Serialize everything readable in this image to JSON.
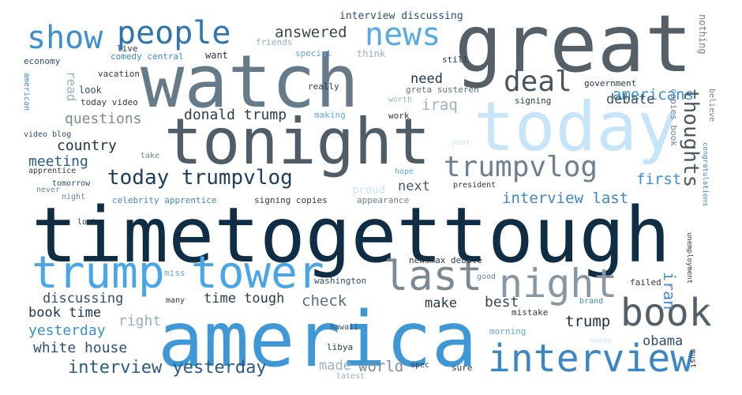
{
  "words": [
    {
      "text": "timetogettough",
      "color": "#0f2d45",
      "vertical": false
    },
    {
      "text": "america",
      "color": "#3f98d6",
      "vertical": false
    },
    {
      "text": "watch",
      "color": "#667b8a",
      "vertical": false
    },
    {
      "text": "great",
      "color": "#545f68",
      "vertical": false
    },
    {
      "text": "tonight",
      "color": "#4f5d69",
      "vertical": false
    },
    {
      "text": "today",
      "color": "#c7e5f8",
      "vertical": false
    },
    {
      "text": "trump",
      "color": "#49a6e6",
      "vertical": false
    },
    {
      "text": "tower",
      "color": "#49a6e6",
      "vertical": false
    },
    {
      "text": "last",
      "color": "#7b8995",
      "vertical": false
    },
    {
      "text": "night",
      "color": "#8997a3",
      "vertical": false
    },
    {
      "text": "book",
      "color": "#545f68",
      "vertical": false
    },
    {
      "text": "interview",
      "color": "#3d86c4",
      "vertical": false
    },
    {
      "text": "show",
      "color": "#3b8fcd",
      "vertical": false
    },
    {
      "text": "people",
      "color": "#2f76b0",
      "vertical": false
    },
    {
      "text": "news",
      "color": "#57aae6",
      "vertical": false
    },
    {
      "text": "deal",
      "color": "#4a5560",
      "vertical": false
    },
    {
      "text": "trumpvlog",
      "color": "#6f8190",
      "vertical": false
    },
    {
      "text": "today trumpvlog",
      "color": "#1d3f60",
      "vertical": false
    },
    {
      "text": "americans",
      "color": "#3b8fcd",
      "vertical": false
    },
    {
      "text": "thoughts",
      "color": "#4b5965",
      "vertical": true
    },
    {
      "text": "answered",
      "color": "#3a4550",
      "vertical": false
    },
    {
      "text": "need",
      "color": "#1d3349",
      "vertical": false
    },
    {
      "text": "iraq",
      "color": "#9ab0c0",
      "vertical": false
    },
    {
      "text": "debate",
      "color": "#3d5060",
      "vertical": false
    },
    {
      "text": "donald trump",
      "color": "#2d3a47",
      "vertical": false
    },
    {
      "text": "questions",
      "color": "#7c8a96",
      "vertical": false
    },
    {
      "text": "country",
      "color": "#1d3349",
      "vertical": false
    },
    {
      "text": "meeting",
      "color": "#2a5b86",
      "vertical": false
    },
    {
      "text": "first",
      "color": "#3b8fcd",
      "vertical": false
    },
    {
      "text": "next",
      "color": "#4b5965",
      "vertical": false
    },
    {
      "text": "interview last",
      "color": "#3d86c4",
      "vertical": false
    },
    {
      "text": "discussing",
      "color": "#2d4f70",
      "vertical": false
    },
    {
      "text": "time tough",
      "color": "#2d3a47",
      "vertical": false
    },
    {
      "text": "check",
      "color": "#5c6e7d",
      "vertical": false
    },
    {
      "text": "make",
      "color": "#2d3a47",
      "vertical": false
    },
    {
      "text": "best",
      "color": "#3a4550",
      "vertical": false
    },
    {
      "text": "iran",
      "color": "#4b8fcd",
      "vertical": true
    },
    {
      "text": "book time",
      "color": "#1d3349",
      "vertical": false
    },
    {
      "text": "right",
      "color": "#9ab0c0",
      "vertical": false
    },
    {
      "text": "yesterday",
      "color": "#3b8fcd",
      "vertical": false
    },
    {
      "text": "white house",
      "color": "#2d4f70",
      "vertical": false
    },
    {
      "text": "trump",
      "color": "#1d3349",
      "vertical": false
    },
    {
      "text": "obama",
      "color": "#2d4f70",
      "vertical": false
    },
    {
      "text": "interview yesterday",
      "color": "#2a5b86",
      "vertical": false
    },
    {
      "text": "made",
      "color": "#9ab0c0",
      "vertical": false
    },
    {
      "text": "world",
      "color": "#7c8a96",
      "vertical": false
    },
    {
      "text": "interview discussing",
      "color": "#2d4f70",
      "vertical": false
    },
    {
      "text": "live",
      "color": "#2d3a47",
      "vertical": false
    },
    {
      "text": "friends",
      "color": "#9ab0c0",
      "vertical": false
    },
    {
      "text": "economy",
      "color": "#2d4f70",
      "vertical": false
    },
    {
      "text": "comedy central",
      "color": "#3d86c4",
      "vertical": false
    },
    {
      "text": "want",
      "color": "#2d3a47",
      "vertical": false
    },
    {
      "text": "special",
      "color": "#5aa9e4",
      "vertical": false
    },
    {
      "text": "think",
      "color": "#9ab0c0",
      "vertical": false
    },
    {
      "text": "still",
      "color": "#2d3a47",
      "vertical": false
    },
    {
      "text": "nothing",
      "color": "#6f8190",
      "vertical": true
    },
    {
      "text": "read",
      "color": "#9ab0c0",
      "vertical": true
    },
    {
      "text": "american",
      "color": "#3d86c4",
      "vertical": true
    },
    {
      "text": "vacation",
      "color": "#2d3a47",
      "vertical": false
    },
    {
      "text": "look",
      "color": "#2d4f70",
      "vertical": false
    },
    {
      "text": "today video",
      "color": "#2d3a47",
      "vertical": false
    },
    {
      "text": "really",
      "color": "#2d3a47",
      "vertical": false
    },
    {
      "text": "greta susteren",
      "color": "#5c6e7d",
      "vertical": false
    },
    {
      "text": "government",
      "color": "#2d3a47",
      "vertical": false
    },
    {
      "text": "signing",
      "color": "#2d3a47",
      "vertical": false
    },
    {
      "text": "worth",
      "color": "#9ab0c0",
      "vertical": false
    },
    {
      "text": "copies book",
      "color": "#6f8190",
      "vertical": true
    },
    {
      "text": "believe",
      "color": "#6f8190",
      "vertical": true
    },
    {
      "text": "congratulations",
      "color": "#3d86c4",
      "vertical": true
    },
    {
      "text": "video blog",
      "color": "#2d4f70",
      "vertical": false
    },
    {
      "text": "making",
      "color": "#5aa9e4",
      "vertical": false
    },
    {
      "text": "work",
      "color": "#2d3a47",
      "vertical": false
    },
    {
      "text": "year",
      "color": "#c7e5f8",
      "vertical": false
    },
    {
      "text": "take",
      "color": "#6f8190",
      "vertical": false
    },
    {
      "text": "apprentice",
      "color": "#2d3a47",
      "vertical": false
    },
    {
      "text": "hope",
      "color": "#5aa9e4",
      "vertical": false
    },
    {
      "text": "tomorrow",
      "color": "#2d4f70",
      "vertical": false
    },
    {
      "text": "never",
      "color": "#6f8190",
      "vertical": false
    },
    {
      "text": "night",
      "color": "#6f8190",
      "vertical": false
    },
    {
      "text": "celebrity apprentice",
      "color": "#3d86c4",
      "vertical": false
    },
    {
      "text": "signing copies",
      "color": "#2d3a47",
      "vertical": false
    },
    {
      "text": "proud",
      "color": "#c7e5f8",
      "vertical": false
    },
    {
      "text": "appearance",
      "color": "#6f8190",
      "vertical": false
    },
    {
      "text": "president",
      "color": "#2d3a47",
      "vertical": false
    },
    {
      "text": "lost",
      "color": "#2d3a47",
      "vertical": false
    },
    {
      "text": "unemployment",
      "color": "#2d3a47",
      "vertical": true
    },
    {
      "text": "newsmax debate",
      "color": "#2d3a47",
      "vertical": false
    },
    {
      "text": "miss",
      "color": "#5aa9e4",
      "vertical": false
    },
    {
      "text": "washington",
      "color": "#2d4f70",
      "vertical": false
    },
    {
      "text": "good",
      "color": "#6f8190",
      "vertical": false
    },
    {
      "text": "failed",
      "color": "#2d3a47",
      "vertical": false
    },
    {
      "text": "many",
      "color": "#2d3a47",
      "vertical": false
    },
    {
      "text": "brand",
      "color": "#3d86c4",
      "vertical": false
    },
    {
      "text": "mistake",
      "color": "#2d3a47",
      "vertical": false
    },
    {
      "text": "hawaii",
      "color": "#2d4f70",
      "vertical": false
    },
    {
      "text": "morning",
      "color": "#5aa9e4",
      "vertical": false
    },
    {
      "text": "libya",
      "color": "#2d3a47",
      "vertical": false
    },
    {
      "text": "money",
      "color": "#c7e5f8",
      "vertical": false
    },
    {
      "text": "must",
      "color": "#2d3a47",
      "vertical": true
    },
    {
      "text": "opec",
      "color": "#2d3a47",
      "vertical": false
    },
    {
      "text": "sure",
      "color": "#2d3a47",
      "vertical": false
    },
    {
      "text": "latest",
      "color": "#9ab0c0",
      "vertical": false
    }
  ]
}
